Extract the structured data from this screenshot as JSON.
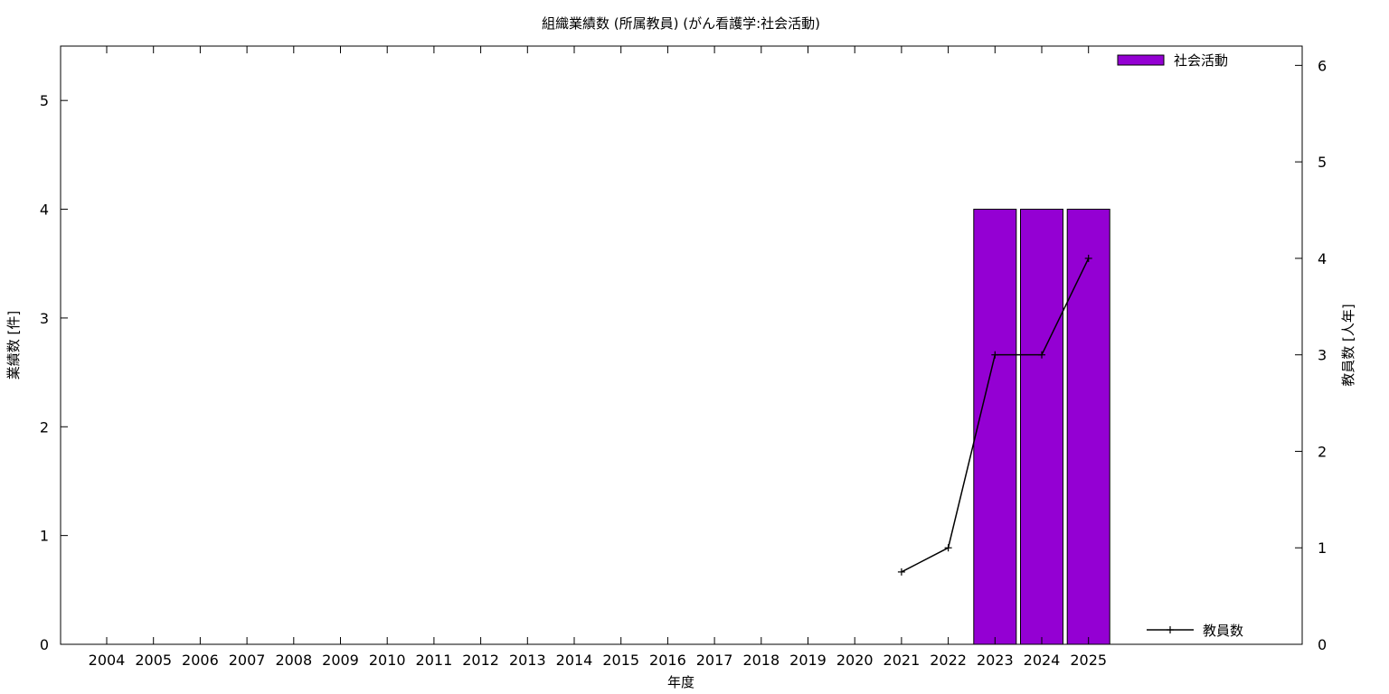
{
  "chart_data": {
    "type": "bar",
    "title": "組織業績数 (所属教員) (がん看護学:社会活動)",
    "xlabel": "年度",
    "ylabel": "業績数 [件]",
    "y2label": "教員数 [人年]",
    "categories": [
      "2004",
      "2005",
      "2006",
      "2007",
      "2008",
      "2009",
      "2010",
      "2011",
      "2012",
      "2013",
      "2014",
      "2015",
      "2016",
      "2017",
      "2018",
      "2019",
      "2020",
      "2021",
      "2022",
      "2023",
      "2024",
      "2025"
    ],
    "ylim": [
      0,
      5.5
    ],
    "yticks": [
      0,
      1,
      2,
      3,
      4,
      5
    ],
    "y2lim": [
      0,
      6.2
    ],
    "y2ticks": [
      0,
      1,
      2,
      3,
      4,
      5,
      6
    ],
    "grid": false,
    "legend_position": "top-right (bars), bottom-right (line)",
    "series": [
      {
        "name": "社会活動",
        "type": "bar",
        "axis": "left",
        "color": "#9400d3",
        "values": [
          0,
          0,
          0,
          0,
          0,
          0,
          0,
          0,
          0,
          0,
          0,
          0,
          0,
          0,
          0,
          0,
          0,
          0,
          0,
          4,
          4,
          4
        ]
      },
      {
        "name": "教員数",
        "type": "line",
        "axis": "right",
        "color": "#000000",
        "x": [
          "2021",
          "2022",
          "2023",
          "2024",
          "2025"
        ],
        "values": [
          0.75,
          1,
          3,
          3,
          4
        ]
      }
    ]
  }
}
